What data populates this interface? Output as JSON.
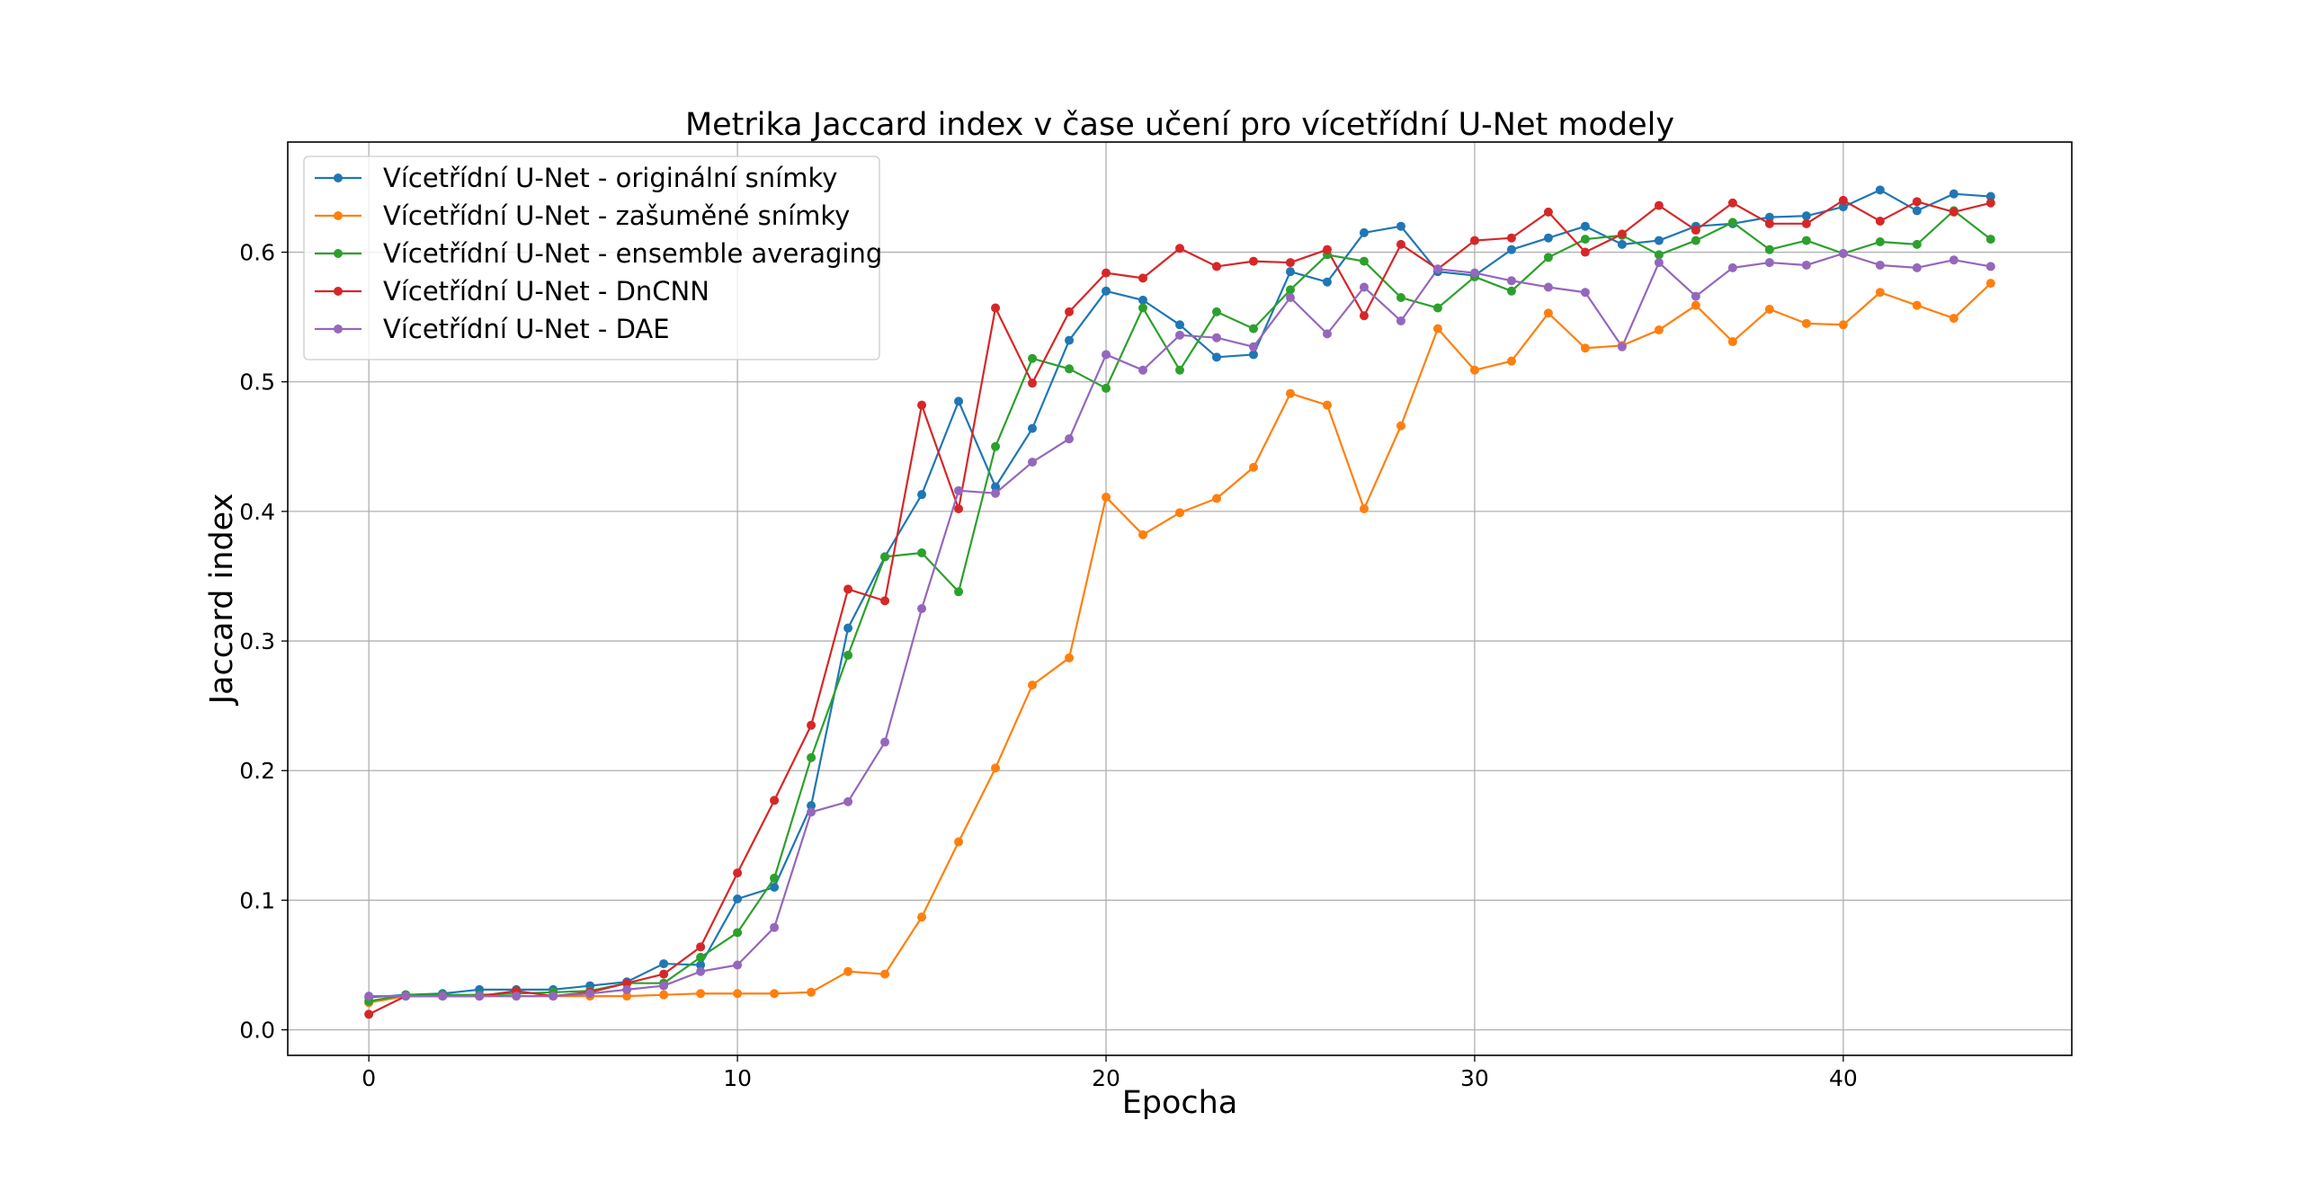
{
  "chart_data": {
    "type": "line",
    "title": "Metrika Jaccard index v čase učení pro vícetřídní U-Net modely",
    "xlabel": "Epocha",
    "ylabel": "Jaccard index",
    "xlim": [
      -2.2,
      46.2
    ],
    "ylim": [
      -0.0197,
      0.685
    ],
    "xticks": [
      0,
      10,
      20,
      30,
      40
    ],
    "yticks": [
      0.0,
      0.1,
      0.2,
      0.3,
      0.4,
      0.5,
      0.6
    ],
    "xtick_labels": [
      "0",
      "10",
      "20",
      "30",
      "40"
    ],
    "ytick_labels": [
      "0.0",
      "0.1",
      "0.2",
      "0.3",
      "0.4",
      "0.5",
      "0.6"
    ],
    "grid": true,
    "legend_position": "upper-left",
    "x": [
      0,
      1,
      2,
      3,
      4,
      5,
      6,
      7,
      8,
      9,
      10,
      11,
      12,
      13,
      14,
      15,
      16,
      17,
      18,
      19,
      20,
      21,
      22,
      23,
      24,
      25,
      26,
      27,
      28,
      29,
      30,
      31,
      32,
      33,
      34,
      35,
      36,
      37,
      38,
      39,
      40,
      41,
      42,
      43,
      44
    ],
    "series": [
      {
        "name": "Vícetřídní U-Net - originální snímky",
        "color": "#1f77b4",
        "values": [
          0.025,
          0.027,
          0.028,
          0.031,
          0.031,
          0.031,
          0.034,
          0.037,
          0.051,
          0.05,
          0.101,
          0.11,
          0.173,
          0.31,
          0.365,
          0.413,
          0.485,
          0.419,
          0.464,
          0.532,
          0.57,
          0.563,
          0.544,
          0.519,
          0.521,
          0.585,
          0.577,
          0.615,
          0.62,
          0.585,
          0.582,
          0.602,
          0.611,
          0.62,
          0.606,
          0.609,
          0.62,
          0.622,
          0.627,
          0.628,
          0.635,
          0.648,
          0.632,
          0.645,
          0.643
        ]
      },
      {
        "name": "Vícetřídní U-Net - zašuměné snímky",
        "color": "#ff7f0e",
        "values": [
          0.021,
          0.026,
          0.026,
          0.026,
          0.026,
          0.026,
          0.026,
          0.026,
          0.027,
          0.028,
          0.028,
          0.028,
          0.029,
          0.045,
          0.043,
          0.087,
          0.145,
          0.202,
          0.266,
          0.287,
          0.411,
          0.382,
          0.399,
          0.41,
          0.434,
          0.491,
          0.482,
          0.402,
          0.466,
          0.541,
          0.509,
          0.516,
          0.553,
          0.526,
          0.528,
          0.54,
          0.559,
          0.531,
          0.556,
          0.545,
          0.544,
          0.569,
          0.559,
          0.549,
          0.576
        ]
      },
      {
        "name": "Vícetřídní U-Net - ensemble averaging",
        "color": "#2ca02c",
        "values": [
          0.022,
          0.027,
          0.027,
          0.027,
          0.028,
          0.029,
          0.03,
          0.036,
          0.036,
          0.056,
          0.075,
          0.117,
          0.21,
          0.289,
          0.365,
          0.368,
          0.338,
          0.45,
          0.518,
          0.51,
          0.495,
          0.557,
          0.509,
          0.554,
          0.541,
          0.571,
          0.598,
          0.593,
          0.565,
          0.557,
          0.581,
          0.57,
          0.596,
          0.61,
          0.613,
          0.598,
          0.609,
          0.623,
          0.602,
          0.609,
          0.599,
          0.608,
          0.606,
          0.632,
          0.61
        ]
      },
      {
        "name": "Vícetřídní U-Net - DnCNN",
        "color": "#d62728",
        "values": [
          0.012,
          0.026,
          0.026,
          0.026,
          0.03,
          0.026,
          0.029,
          0.036,
          0.043,
          0.064,
          0.121,
          0.177,
          0.235,
          0.34,
          0.331,
          0.482,
          0.402,
          0.557,
          0.499,
          0.554,
          0.584,
          0.58,
          0.603,
          0.589,
          0.593,
          0.592,
          0.602,
          0.551,
          0.606,
          0.587,
          0.609,
          0.611,
          0.631,
          0.6,
          0.614,
          0.636,
          0.617,
          0.638,
          0.622,
          0.622,
          0.64,
          0.624,
          0.639,
          0.631,
          0.638
        ]
      },
      {
        "name": "Vícetřídní U-Net - DAE",
        "color": "#9467bd",
        "values": [
          0.026,
          0.026,
          0.026,
          0.026,
          0.026,
          0.026,
          0.028,
          0.031,
          0.034,
          0.045,
          0.05,
          0.079,
          0.168,
          0.176,
          0.222,
          0.325,
          0.416,
          0.414,
          0.438,
          0.456,
          0.521,
          0.509,
          0.536,
          0.534,
          0.527,
          0.565,
          0.537,
          0.573,
          0.547,
          0.587,
          0.584,
          0.578,
          0.573,
          0.569,
          0.527,
          0.592,
          0.566,
          0.588,
          0.592,
          0.59,
          0.599,
          0.59,
          0.588,
          0.594,
          0.589
        ]
      }
    ]
  }
}
